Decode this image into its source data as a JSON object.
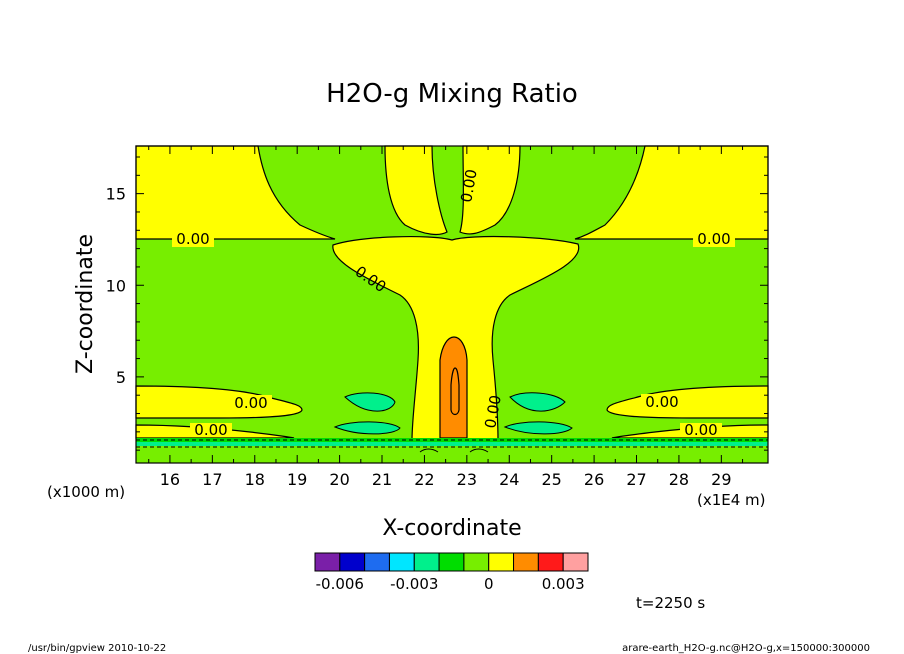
{
  "chart_data": {
    "type": "heatmap",
    "title": "H2O-g Mixing Ratio",
    "xlabel": "X-coordinate",
    "ylabel": "Z-coordinate",
    "x_unit": "(x1E4 m)",
    "y_unit": "(x1000 m)",
    "xlim": [
      15.2,
      30.1
    ],
    "ylim": [
      0.3,
      17.6
    ],
    "x_ticks": [
      "16",
      "17",
      "18",
      "19",
      "20",
      "21",
      "22",
      "23",
      "24",
      "25",
      "26",
      "27",
      "28",
      "29"
    ],
    "y_ticks": [
      "5",
      "10",
      "15"
    ],
    "contour_labels": [
      "0.00",
      "0.00",
      "0.00",
      "0.00",
      "0.00",
      "0.00",
      "0.00",
      "0.00",
      "0.00"
    ],
    "colorbar": {
      "levels": [
        "-0.006",
        "-0.003",
        "0",
        "0.003"
      ],
      "colors": [
        "#7a1fa8",
        "#0000cc",
        "#1e6cf0",
        "#00e6ff",
        "#00f08c",
        "#00dd00",
        "#77ee00",
        "#ffff00",
        "#ff8c00",
        "#ff1a1a",
        "#ffa0a0"
      ]
    },
    "time_label": "t=2250 s"
  },
  "footer": {
    "left": "/usr/bin/gpview  2010-10-22",
    "right": "arare-earth_H2O-g.nc@H2O-g,x=150000:300000"
  }
}
